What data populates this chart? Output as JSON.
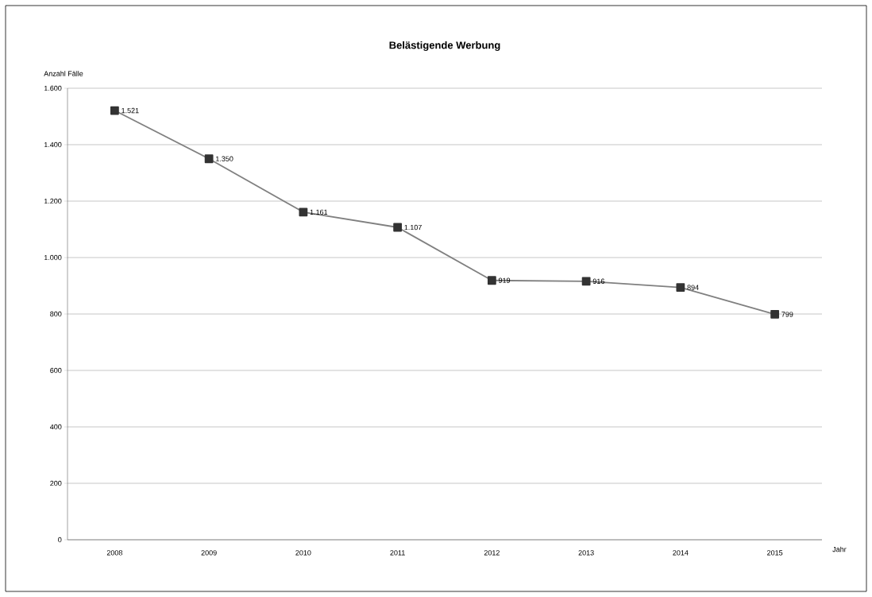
{
  "chart_data": {
    "type": "line",
    "title": "Belästigende Werbung",
    "ylabel": "Anzahl Fälle",
    "xlabel": "Jahr",
    "categories": [
      "2008",
      "2009",
      "2010",
      "2011",
      "2012",
      "2013",
      "2014",
      "2015"
    ],
    "values": [
      1521,
      1350,
      1161,
      1107,
      919,
      916,
      894,
      799
    ],
    "value_labels": [
      "1.521",
      "1.350",
      "1.161",
      "1.107",
      "919",
      "916",
      "894",
      "799"
    ],
    "color": "#808080",
    "marker": "square",
    "line_style": "solid",
    "grid": "y",
    "ylim": [
      0,
      1600
    ],
    "yticks": [
      0,
      200,
      400,
      600,
      800,
      {
        "value": 1000,
        "label": "1.000"
      },
      {
        "value": 1200,
        "label": "1.200"
      },
      {
        "value": 1400,
        "label": "1.400"
      },
      {
        "value": 1600,
        "label": "1.600"
      }
    ]
  }
}
